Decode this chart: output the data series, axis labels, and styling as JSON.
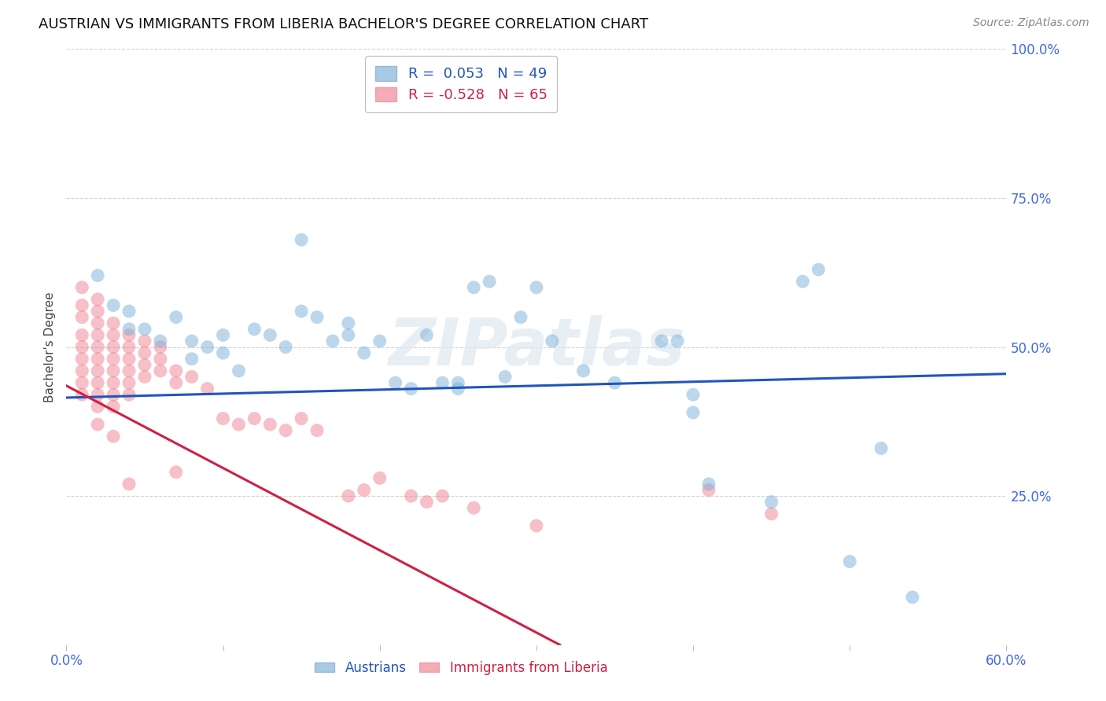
{
  "title": "AUSTRIAN VS IMMIGRANTS FROM LIBERIA BACHELOR'S DEGREE CORRELATION CHART",
  "source": "Source: ZipAtlas.com",
  "ylabel": "Bachelor's Degree",
  "background_color": "#ffffff",
  "xlim": [
    0.0,
    0.6
  ],
  "ylim": [
    0.0,
    1.0
  ],
  "xticks": [
    0.0,
    0.1,
    0.2,
    0.3,
    0.4,
    0.5,
    0.6
  ],
  "xticklabels": [
    "0.0%",
    "",
    "",
    "",
    "",
    "",
    "60.0%"
  ],
  "yticks": [
    0.0,
    0.25,
    0.5,
    0.75,
    1.0
  ],
  "yticklabels_right": [
    "",
    "25.0%",
    "50.0%",
    "75.0%",
    "100.0%"
  ],
  "grid_color": "#cccccc",
  "blue_color": "#7ab0d8",
  "pink_color": "#f08090",
  "blue_scatter": [
    [
      0.02,
      0.62
    ],
    [
      0.03,
      0.57
    ],
    [
      0.04,
      0.53
    ],
    [
      0.04,
      0.56
    ],
    [
      0.05,
      0.53
    ],
    [
      0.06,
      0.51
    ],
    [
      0.07,
      0.55
    ],
    [
      0.08,
      0.51
    ],
    [
      0.08,
      0.48
    ],
    [
      0.09,
      0.5
    ],
    [
      0.1,
      0.52
    ],
    [
      0.1,
      0.49
    ],
    [
      0.11,
      0.46
    ],
    [
      0.12,
      0.53
    ],
    [
      0.13,
      0.52
    ],
    [
      0.14,
      0.5
    ],
    [
      0.15,
      0.68
    ],
    [
      0.15,
      0.56
    ],
    [
      0.16,
      0.55
    ],
    [
      0.17,
      0.51
    ],
    [
      0.18,
      0.54
    ],
    [
      0.18,
      0.52
    ],
    [
      0.19,
      0.49
    ],
    [
      0.2,
      0.51
    ],
    [
      0.21,
      0.44
    ],
    [
      0.22,
      0.43
    ],
    [
      0.23,
      0.52
    ],
    [
      0.24,
      0.44
    ],
    [
      0.25,
      0.44
    ],
    [
      0.25,
      0.43
    ],
    [
      0.26,
      0.6
    ],
    [
      0.27,
      0.61
    ],
    [
      0.28,
      0.45
    ],
    [
      0.29,
      0.55
    ],
    [
      0.3,
      0.6
    ],
    [
      0.31,
      0.51
    ],
    [
      0.33,
      0.46
    ],
    [
      0.35,
      0.44
    ],
    [
      0.38,
      0.51
    ],
    [
      0.39,
      0.51
    ],
    [
      0.4,
      0.42
    ],
    [
      0.41,
      0.27
    ],
    [
      0.45,
      0.24
    ],
    [
      0.47,
      0.61
    ],
    [
      0.48,
      0.63
    ],
    [
      0.5,
      0.14
    ],
    [
      0.52,
      0.33
    ],
    [
      0.54,
      0.08
    ],
    [
      0.4,
      0.39
    ]
  ],
  "pink_scatter": [
    [
      0.01,
      0.6
    ],
    [
      0.01,
      0.57
    ],
    [
      0.01,
      0.55
    ],
    [
      0.01,
      0.52
    ],
    [
      0.01,
      0.5
    ],
    [
      0.01,
      0.48
    ],
    [
      0.01,
      0.46
    ],
    [
      0.01,
      0.44
    ],
    [
      0.01,
      0.42
    ],
    [
      0.02,
      0.58
    ],
    [
      0.02,
      0.56
    ],
    [
      0.02,
      0.54
    ],
    [
      0.02,
      0.52
    ],
    [
      0.02,
      0.5
    ],
    [
      0.02,
      0.48
    ],
    [
      0.02,
      0.46
    ],
    [
      0.02,
      0.44
    ],
    [
      0.02,
      0.42
    ],
    [
      0.02,
      0.4
    ],
    [
      0.02,
      0.37
    ],
    [
      0.03,
      0.54
    ],
    [
      0.03,
      0.52
    ],
    [
      0.03,
      0.5
    ],
    [
      0.03,
      0.48
    ],
    [
      0.03,
      0.46
    ],
    [
      0.03,
      0.44
    ],
    [
      0.03,
      0.42
    ],
    [
      0.03,
      0.4
    ],
    [
      0.03,
      0.35
    ],
    [
      0.04,
      0.52
    ],
    [
      0.04,
      0.5
    ],
    [
      0.04,
      0.48
    ],
    [
      0.04,
      0.46
    ],
    [
      0.04,
      0.44
    ],
    [
      0.04,
      0.42
    ],
    [
      0.04,
      0.27
    ],
    [
      0.05,
      0.51
    ],
    [
      0.05,
      0.49
    ],
    [
      0.05,
      0.47
    ],
    [
      0.05,
      0.45
    ],
    [
      0.06,
      0.5
    ],
    [
      0.06,
      0.48
    ],
    [
      0.06,
      0.46
    ],
    [
      0.07,
      0.46
    ],
    [
      0.07,
      0.44
    ],
    [
      0.08,
      0.45
    ],
    [
      0.09,
      0.43
    ],
    [
      0.1,
      0.38
    ],
    [
      0.11,
      0.37
    ],
    [
      0.12,
      0.38
    ],
    [
      0.13,
      0.37
    ],
    [
      0.14,
      0.36
    ],
    [
      0.15,
      0.38
    ],
    [
      0.16,
      0.36
    ],
    [
      0.18,
      0.25
    ],
    [
      0.19,
      0.26
    ],
    [
      0.2,
      0.28
    ],
    [
      0.22,
      0.25
    ],
    [
      0.23,
      0.24
    ],
    [
      0.24,
      0.25
    ],
    [
      0.26,
      0.23
    ],
    [
      0.3,
      0.2
    ],
    [
      0.41,
      0.26
    ],
    [
      0.45,
      0.22
    ],
    [
      0.07,
      0.29
    ]
  ],
  "blue_line": [
    [
      0.0,
      0.415
    ],
    [
      0.6,
      0.455
    ]
  ],
  "pink_line": [
    [
      0.0,
      0.435
    ],
    [
      0.315,
      0.0
    ]
  ],
  "R_blue": 0.053,
  "N_blue": 49,
  "R_pink": -0.528,
  "N_pink": 65,
  "legend_blue": "Austrians",
  "legend_pink": "Immigrants from Liberia",
  "watermark": "ZIPatlas",
  "title_fontsize": 13,
  "tick_fontsize": 12,
  "tick_color": "#4169e1",
  "legend_fontsize": 13
}
